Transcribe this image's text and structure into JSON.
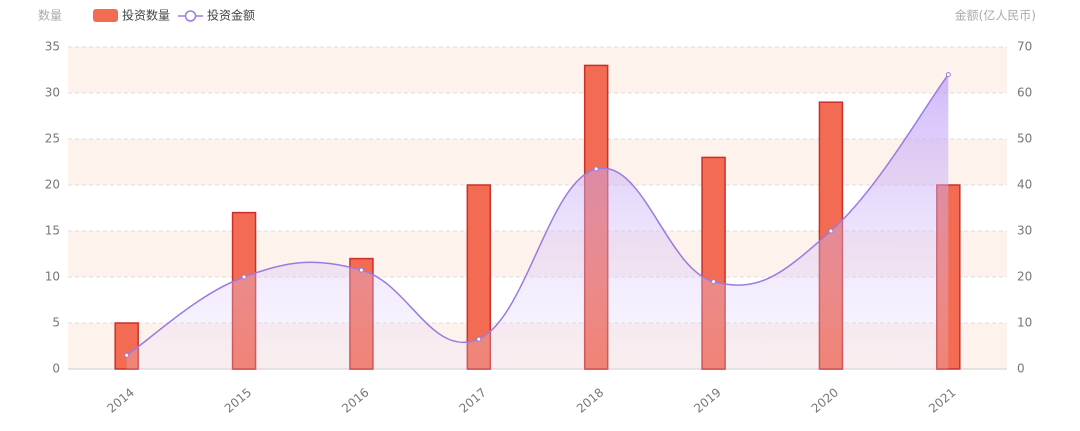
{
  "chart_data": {
    "type": "bar-line",
    "y_axis_label": "数量",
    "y2_axis_label": "金额(亿人民币)",
    "categories": [
      "2014",
      "2015",
      "2016",
      "2017",
      "2018",
      "2019",
      "2020",
      "2021"
    ],
    "series": [
      {
        "name": "投资数量",
        "type": "bar",
        "color": "#f26b52",
        "values": [
          5,
          17,
          12,
          20,
          33,
          23,
          29,
          20
        ]
      },
      {
        "name": "投资金额",
        "type": "line",
        "axis": "y2",
        "color": "#9b7be0",
        "values": [
          3,
          20,
          21.5,
          6.5,
          43.5,
          19,
          30,
          64
        ]
      }
    ],
    "ylim": [
      0,
      35
    ],
    "yticks": [
      0,
      5,
      10,
      15,
      20,
      25,
      30,
      35
    ],
    "y2lim": [
      0,
      70
    ],
    "y2ticks": [
      0,
      10,
      20,
      30,
      40,
      50,
      60,
      70
    ],
    "grid": true
  }
}
